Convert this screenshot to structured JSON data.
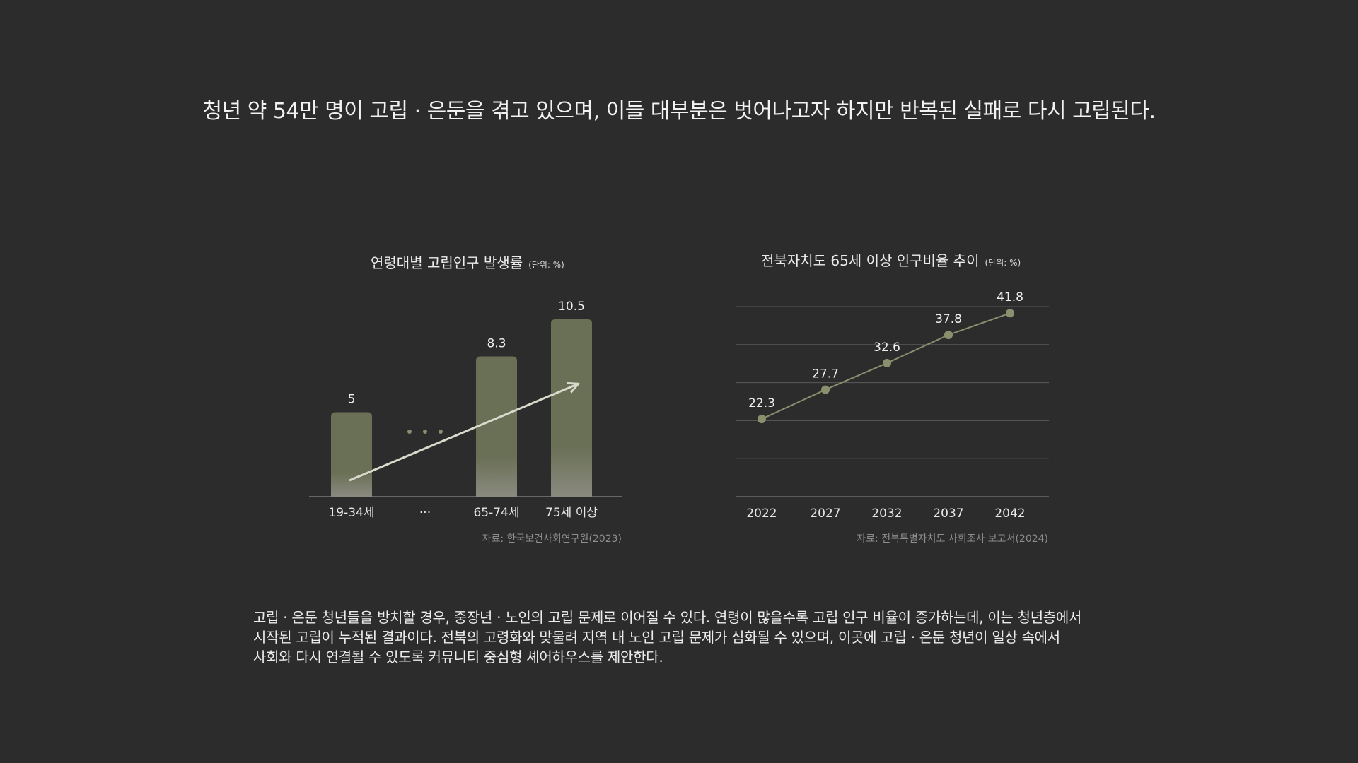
{
  "headline": "청년 약 54만 명이 고립 · 은둔을 겪고 있으며, 이들 대부분은 벗어나고자 하지만 반복된 실패로 다시 고립된다.",
  "colors": {
    "background": "#2c2c2c",
    "bar_fill": "#6a7055",
    "line_color": "#8a8f6e",
    "arrow_color": "#d9d9cc",
    "grid_color": "#5a5a5a"
  },
  "chart_data": [
    {
      "type": "bar",
      "title": "연령대별 고립인구 발생률",
      "unit": "(단위: %)",
      "categories": [
        "19-34세",
        "···",
        "65-74세",
        "75세 이상"
      ],
      "values": [
        5,
        null,
        8.3,
        10.5
      ],
      "value_labels": [
        "5",
        "",
        "8.3",
        "10.5"
      ],
      "ellipsis_category": "···",
      "trend_arrow": true,
      "ylim": [
        0,
        11
      ],
      "source": "자료: 한국보건사회연구원(2023)"
    },
    {
      "type": "line",
      "title": "전북자치도 65세 이상 인구비율 추이",
      "unit": "(단위: %)",
      "x": [
        "2022",
        "2027",
        "2032",
        "2037",
        "2042"
      ],
      "values": [
        22.3,
        27.7,
        32.6,
        37.8,
        41.8
      ],
      "value_labels": [
        "22.3",
        "27.7",
        "32.6",
        "37.8",
        "41.8"
      ],
      "ylim": [
        8,
        43
      ],
      "grid": true,
      "source": "자료: 전북특별자치도 사회조사 보고서(2024)"
    }
  ],
  "body_lines": [
    "고립 · 은둔 청년들을 방치할 경우, 중장년 · 노인의 고립 문제로 이어질 수 있다. 연령이 많을수록 고립 인구 비율이 증가하는데, 이는 청년층에서",
    "시작된 고립이 누적된 결과이다. 전북의 고령화와 맞물려 지역 내 노인 고립 문제가 심화될 수 있으며, 이곳에 고립 · 은둔 청년이 일상 속에서",
    "사회와 다시 연결될 수 있도록 커뮤니티 중심형 셰어하우스를 제안한다."
  ]
}
